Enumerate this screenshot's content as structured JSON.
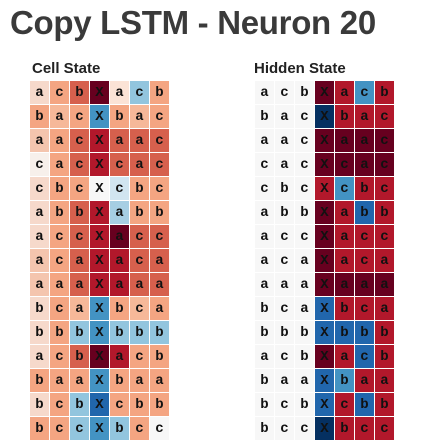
{
  "title": "Copy LSTM - Neuron 20",
  "panels": {
    "cell": {
      "label": "Cell State",
      "rows": [
        {
          "chars": [
            "a",
            "c",
            "b",
            "X",
            "a",
            "c",
            "b"
          ],
          "colors": [
            "#f6d9cb",
            "#f4a582",
            "#d6604d",
            "#67001f",
            "#fbe3d6",
            "#92c5de",
            "#f4a582"
          ]
        },
        {
          "chars": [
            "b",
            "a",
            "c",
            "X",
            "b",
            "a",
            "c"
          ],
          "colors": [
            "#f4a582",
            "#f6b899",
            "#f4a582",
            "#4393c3",
            "#f4a582",
            "#f6b899",
            "#f4a582"
          ]
        },
        {
          "chars": [
            "a",
            "a",
            "c",
            "X",
            "a",
            "a",
            "c"
          ],
          "colors": [
            "#f4c5ae",
            "#f4a582",
            "#d6604d",
            "#b2182b",
            "#d6604d",
            "#d6604d",
            "#d6604d"
          ]
        },
        {
          "chars": [
            "c",
            "a",
            "c",
            "X",
            "c",
            "a",
            "c"
          ],
          "colors": [
            "#f7f0eb",
            "#f4a582",
            "#d6604d",
            "#b2182b",
            "#d6604d",
            "#d6604d",
            "#d6604d"
          ]
        },
        {
          "chars": [
            "c",
            "b",
            "c",
            "X",
            "c",
            "b",
            "c"
          ],
          "colors": [
            "#f6d9cb",
            "#f4a582",
            "#f4a582",
            "#f7f7f7",
            "#d1e5f0",
            "#f4a582",
            "#f4a582"
          ]
        },
        {
          "chars": [
            "a",
            "b",
            "b",
            "X",
            "a",
            "b",
            "b"
          ],
          "colors": [
            "#f6d9cb",
            "#f4a582",
            "#d6604d",
            "#b2182b",
            "#a6cee3",
            "#f4a582",
            "#f4a582"
          ]
        },
        {
          "chars": [
            "a",
            "c",
            "c",
            "X",
            "a",
            "c",
            "c"
          ],
          "colors": [
            "#f6d9cb",
            "#f4a582",
            "#d6604d",
            "#b2182b",
            "#67001f",
            "#d6604d",
            "#d6604d"
          ]
        },
        {
          "chars": [
            "a",
            "c",
            "a",
            "X",
            "a",
            "c",
            "a"
          ],
          "colors": [
            "#f4c5ae",
            "#f4a582",
            "#d6604d",
            "#b2182b",
            "#b2182b",
            "#d6604d",
            "#d6604d"
          ]
        },
        {
          "chars": [
            "a",
            "a",
            "a",
            "X",
            "a",
            "a",
            "a"
          ],
          "colors": [
            "#f4c5ae",
            "#f4a582",
            "#d6604d",
            "#b2182b",
            "#b2182b",
            "#d6604d",
            "#d6604d"
          ]
        },
        {
          "chars": [
            "b",
            "c",
            "a",
            "X",
            "b",
            "c",
            "a"
          ],
          "colors": [
            "#f6d9cb",
            "#f4a582",
            "#f6b899",
            "#4393c3",
            "#f4a582",
            "#f6b899",
            "#f4a582"
          ]
        },
        {
          "chars": [
            "b",
            "b",
            "b",
            "X",
            "b",
            "b",
            "b"
          ],
          "colors": [
            "#f6d9cb",
            "#f4a582",
            "#92c5de",
            "#4393c3",
            "#92c5de",
            "#92c5de",
            "#92c5de"
          ]
        },
        {
          "chars": [
            "a",
            "c",
            "b",
            "X",
            "a",
            "c",
            "b"
          ],
          "colors": [
            "#f6d9cb",
            "#f4a582",
            "#d6604d",
            "#67001f",
            "#b2182b",
            "#f4a582",
            "#f4a582"
          ]
        },
        {
          "chars": [
            "b",
            "a",
            "a",
            "X",
            "b",
            "a",
            "a"
          ],
          "colors": [
            "#f4a582",
            "#f4a582",
            "#f4a582",
            "#4393c3",
            "#f4a582",
            "#f4a582",
            "#f4a582"
          ]
        },
        {
          "chars": [
            "b",
            "c",
            "b",
            "X",
            "c",
            "b",
            "b"
          ],
          "colors": [
            "#f6d9cb",
            "#f4a582",
            "#92c5de",
            "#2166ac",
            "#f4a582",
            "#f4a582",
            "#f4a582"
          ]
        },
        {
          "chars": [
            "b",
            "c",
            "c",
            "X",
            "b",
            "c",
            "c"
          ],
          "colors": [
            "#f4a582",
            "#f4a582",
            "#92c5de",
            "#4393c3",
            "#92c5de",
            "#f4a582",
            "#f7f7f7"
          ]
        }
      ]
    },
    "hidden": {
      "label": "Hidden State",
      "rows": [
        {
          "chars": [
            "a",
            "c",
            "b",
            "X",
            "a",
            "c",
            "b"
          ],
          "colors": [
            "#f7f7f7",
            "#f7f7f7",
            "#f7f7f7",
            "#67001f",
            "#b2182b",
            "#4393c3",
            "#b2182b"
          ]
        },
        {
          "chars": [
            "b",
            "a",
            "c",
            "X",
            "b",
            "a",
            "c"
          ],
          "colors": [
            "#f7f7f7",
            "#f7f7f7",
            "#f7f7f7",
            "#053061",
            "#b2182b",
            "#b2182b",
            "#b2182b"
          ]
        },
        {
          "chars": [
            "a",
            "a",
            "c",
            "X",
            "a",
            "a",
            "c"
          ],
          "colors": [
            "#f7f7f7",
            "#f7f7f7",
            "#f7f7f7",
            "#67001f",
            "#67001f",
            "#67001f",
            "#67001f"
          ]
        },
        {
          "chars": [
            "c",
            "a",
            "c",
            "X",
            "c",
            "a",
            "c"
          ],
          "colors": [
            "#f7f7f7",
            "#f7f7f7",
            "#f7f7f7",
            "#67001f",
            "#67001f",
            "#67001f",
            "#67001f"
          ]
        },
        {
          "chars": [
            "c",
            "b",
            "c",
            "X",
            "c",
            "b",
            "c"
          ],
          "colors": [
            "#f7f7f7",
            "#f7f7f7",
            "#f7f7f7",
            "#b2182b",
            "#4393c3",
            "#b2182b",
            "#b2182b"
          ]
        },
        {
          "chars": [
            "a",
            "b",
            "b",
            "X",
            "a",
            "b",
            "b"
          ],
          "colors": [
            "#f7f7f7",
            "#f7f7f7",
            "#f7f7f7",
            "#67001f",
            "#b2182b",
            "#2166ac",
            "#b2182b"
          ]
        },
        {
          "chars": [
            "a",
            "c",
            "c",
            "X",
            "a",
            "c",
            "c"
          ],
          "colors": [
            "#f7f7f7",
            "#f7f7f7",
            "#f7f7f7",
            "#67001f",
            "#b2182b",
            "#b2182b",
            "#b2182b"
          ]
        },
        {
          "chars": [
            "a",
            "c",
            "a",
            "X",
            "a",
            "c",
            "a"
          ],
          "colors": [
            "#f7f7f7",
            "#f7f7f7",
            "#f7f7f7",
            "#67001f",
            "#b2182b",
            "#b2182b",
            "#b2182b"
          ]
        },
        {
          "chars": [
            "a",
            "a",
            "a",
            "X",
            "a",
            "a",
            "a"
          ],
          "colors": [
            "#f7f7f7",
            "#f7f7f7",
            "#f7f7f7",
            "#67001f",
            "#67001f",
            "#67001f",
            "#67001f"
          ]
        },
        {
          "chars": [
            "b",
            "c",
            "a",
            "X",
            "b",
            "c",
            "a"
          ],
          "colors": [
            "#f7f7f7",
            "#f7f7f7",
            "#f7f7f7",
            "#2166ac",
            "#b2182b",
            "#b2182b",
            "#b2182b"
          ]
        },
        {
          "chars": [
            "b",
            "b",
            "b",
            "X",
            "b",
            "b",
            "b"
          ],
          "colors": [
            "#f7f7f7",
            "#f7f7f7",
            "#f7f7f7",
            "#2166ac",
            "#2166ac",
            "#2166ac",
            "#b2182b"
          ]
        },
        {
          "chars": [
            "a",
            "c",
            "b",
            "X",
            "a",
            "c",
            "b"
          ],
          "colors": [
            "#f7f7f7",
            "#f7f7f7",
            "#f7f7f7",
            "#67001f",
            "#b2182b",
            "#2166ac",
            "#b2182b"
          ]
        },
        {
          "chars": [
            "b",
            "a",
            "a",
            "X",
            "b",
            "a",
            "a"
          ],
          "colors": [
            "#f7f7f7",
            "#f7f7f7",
            "#f7f7f7",
            "#2166ac",
            "#4393c3",
            "#b2182b",
            "#b2182b"
          ]
        },
        {
          "chars": [
            "b",
            "c",
            "b",
            "X",
            "c",
            "b",
            "b"
          ],
          "colors": [
            "#f7f7f7",
            "#f7f7f7",
            "#f7f7f7",
            "#2166ac",
            "#b2182b",
            "#2166ac",
            "#b2182b"
          ]
        },
        {
          "chars": [
            "b",
            "c",
            "c",
            "X",
            "b",
            "c",
            "c"
          ],
          "colors": [
            "#f7f7f7",
            "#f7f7f7",
            "#f7f7f7",
            "#053061",
            "#b2182b",
            "#b2182b",
            "#b2182b"
          ]
        }
      ]
    }
  }
}
